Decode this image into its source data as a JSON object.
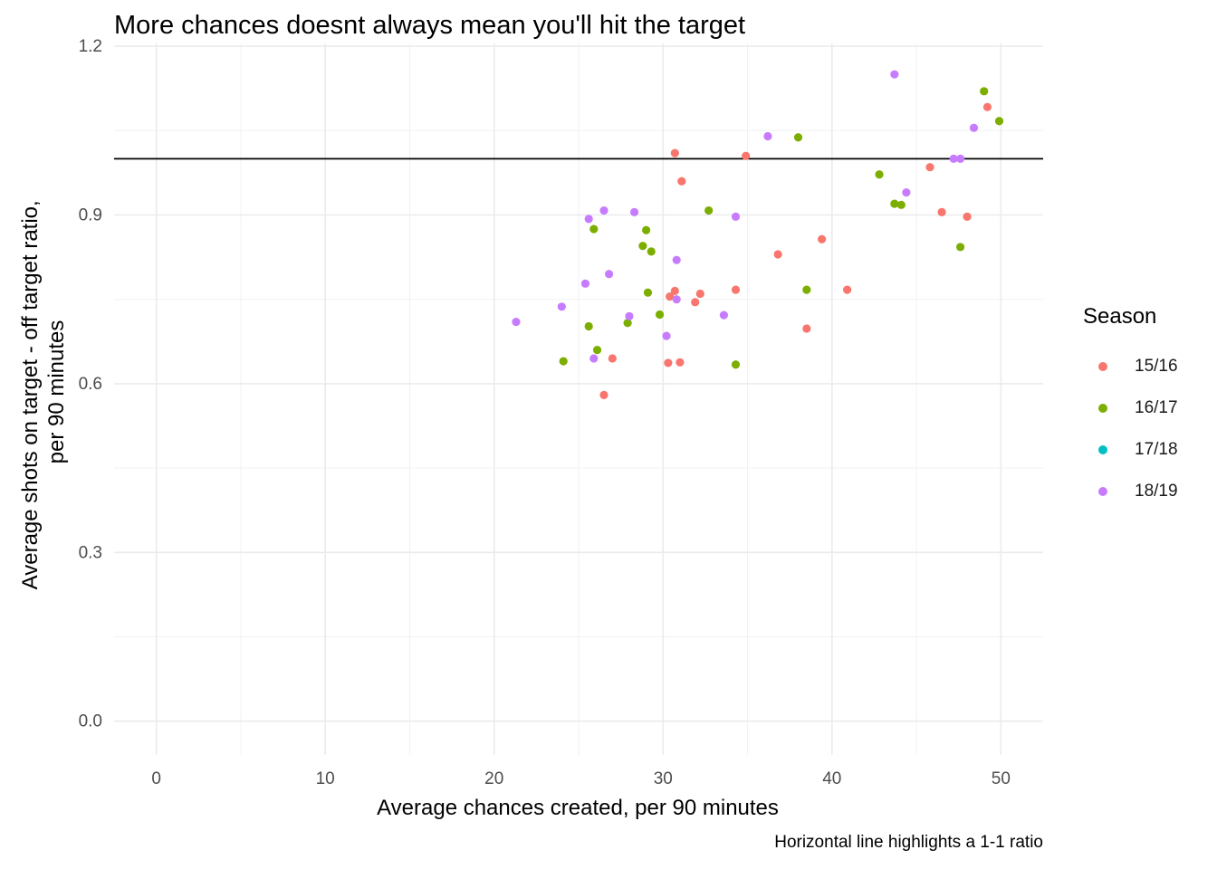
{
  "title": "More chances doesnt always mean you'll hit the target",
  "caption": "Horizontal line highlights a 1-1 ratio",
  "legend": {
    "title": "Season",
    "placement": "right",
    "items": [
      {
        "label": "15/16",
        "color": "#F8766D"
      },
      {
        "label": "16/17",
        "color": "#7CAE00"
      },
      {
        "label": "17/18",
        "color": "#00BFC4"
      },
      {
        "label": "18/19",
        "color": "#C77CFF"
      }
    ]
  },
  "chart_data": {
    "type": "scatter",
    "xlabel": "Average chances created, per 90 minutes",
    "ylabel_lines": [
      "Average shots on target - off target ratio,",
      "per 90 minutes"
    ],
    "xlim": [
      -2.5,
      52.5
    ],
    "ylim": [
      -0.06,
      1.205
    ],
    "x_ticks": [
      0,
      10,
      20,
      30,
      40,
      50
    ],
    "x_tick_labels": [
      "0",
      "10",
      "20",
      "30",
      "40",
      "50"
    ],
    "y_ticks": [
      0.0,
      0.3,
      0.6,
      0.9,
      1.2
    ],
    "y_tick_labels": [
      "0.0",
      "0.3",
      "0.6",
      "0.9",
      "1.2"
    ],
    "grid": true,
    "reference_line": {
      "y": 1.0
    },
    "series": [
      {
        "name": "15/16",
        "color": "#F8766D",
        "points": [
          [
            30.7,
            1.01
          ],
          [
            34.9,
            1.005
          ],
          [
            31.1,
            0.96
          ],
          [
            30.4,
            0.755
          ],
          [
            30.7,
            0.765
          ],
          [
            32.2,
            0.76
          ],
          [
            31.9,
            0.745
          ],
          [
            34.3,
            0.767
          ],
          [
            36.8,
            0.83
          ],
          [
            39.4,
            0.857
          ],
          [
            38.5,
            0.698
          ],
          [
            40.9,
            0.767
          ],
          [
            30.3,
            0.637
          ],
          [
            31.0,
            0.638
          ],
          [
            27.0,
            0.645
          ],
          [
            26.5,
            0.58
          ],
          [
            45.8,
            0.985
          ],
          [
            46.5,
            0.905
          ],
          [
            48.0,
            0.897
          ],
          [
            49.2,
            1.092
          ]
        ]
      },
      {
        "name": "16/17",
        "color": "#7CAE00",
        "points": [
          [
            25.9,
            0.875
          ],
          [
            28.8,
            0.845
          ],
          [
            29.0,
            0.873
          ],
          [
            29.3,
            0.835
          ],
          [
            29.1,
            0.762
          ],
          [
            27.9,
            0.708
          ],
          [
            29.8,
            0.723
          ],
          [
            25.6,
            0.702
          ],
          [
            26.1,
            0.66
          ],
          [
            24.1,
            0.64
          ],
          [
            32.7,
            0.908
          ],
          [
            34.3,
            0.634
          ],
          [
            38.0,
            1.038
          ],
          [
            38.5,
            0.767
          ],
          [
            42.8,
            0.972
          ],
          [
            43.7,
            0.92
          ],
          [
            44.1,
            0.918
          ],
          [
            47.6,
            0.843
          ],
          [
            49.0,
            1.12
          ],
          [
            49.9,
            1.067
          ]
        ]
      },
      {
        "name": "17/18",
        "color": "#00BFC4",
        "points": []
      },
      {
        "name": "18/19",
        "color": "#C77CFF",
        "points": [
          [
            21.3,
            0.71
          ],
          [
            24.0,
            0.737
          ],
          [
            25.4,
            0.778
          ],
          [
            25.6,
            0.893
          ],
          [
            26.5,
            0.908
          ],
          [
            26.8,
            0.795
          ],
          [
            25.9,
            0.645
          ],
          [
            28.0,
            0.72
          ],
          [
            28.3,
            0.905
          ],
          [
            30.8,
            0.82
          ],
          [
            30.8,
            0.75
          ],
          [
            30.2,
            0.685
          ],
          [
            33.6,
            0.722
          ],
          [
            34.3,
            0.897
          ],
          [
            36.2,
            1.04
          ],
          [
            43.7,
            1.15
          ],
          [
            44.4,
            0.94
          ],
          [
            47.2,
            1.0
          ],
          [
            47.6,
            1.0
          ],
          [
            48.4,
            1.055
          ]
        ]
      }
    ]
  }
}
